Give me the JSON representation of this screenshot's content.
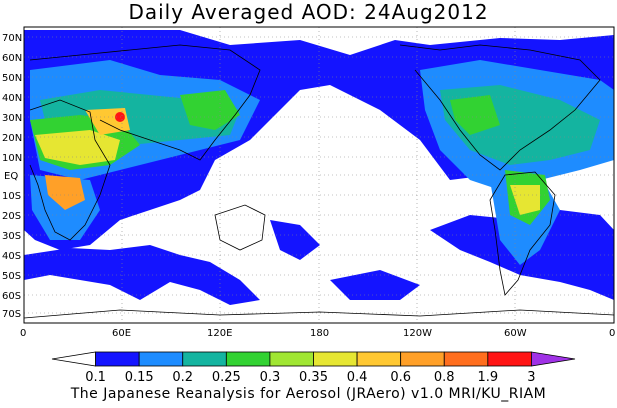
{
  "title": "Daily Averaged AOD: 24Aug2012",
  "credit": "The Japanese Reanalysis for Aerosol (JRAero) v1.0 MRI/KU_RIAM",
  "lat_labels": [
    "70N",
    "60N",
    "50N",
    "40N",
    "30N",
    "20N",
    "10N",
    "EQ",
    "10S",
    "20S",
    "30S",
    "40S",
    "50S",
    "60S",
    "70S"
  ],
  "lon_labels": [
    "0",
    "60E",
    "120E",
    "180",
    "120W",
    "60W",
    "0"
  ],
  "colorbar": {
    "levels": [
      "0.1",
      "0.15",
      "0.2",
      "0.25",
      "0.3",
      "0.35",
      "0.4",
      "0.6",
      "0.8",
      "1.9",
      "3"
    ],
    "colors": [
      "#ffffff",
      "#1414ff",
      "#1e8cff",
      "#14b4a0",
      "#32d232",
      "#a0e632",
      "#e6e632",
      "#ffc832",
      "#ffa028",
      "#ff6e1e",
      "#ff1414",
      "#a032e6"
    ]
  },
  "legend_colors": {
    "land_outline": "#000000",
    "graticule": "#888888"
  }
}
